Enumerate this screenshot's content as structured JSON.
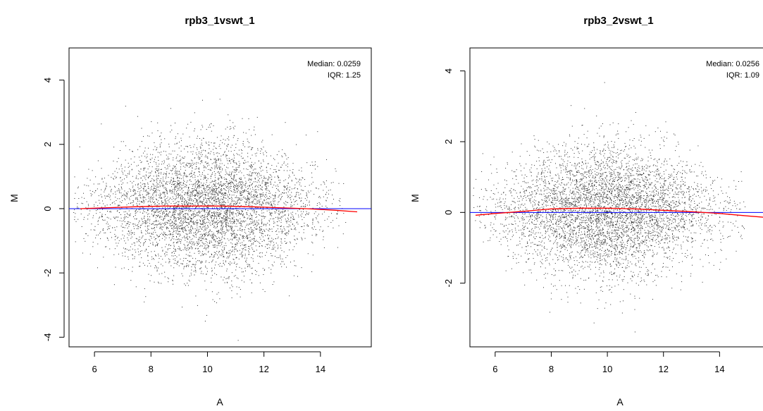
{
  "chart_data": [
    {
      "type": "scatter",
      "title": "rpb3_1vswt_1",
      "xlabel": "A",
      "ylabel": "M",
      "xlim": [
        5.1,
        15.8
      ],
      "ylim": [
        -4.3,
        5.0
      ],
      "x_ticks": [
        "6",
        "8",
        "10",
        "12",
        "14"
      ],
      "y_ticks": [
        "-4",
        "-2",
        "0",
        "2",
        "4"
      ],
      "grid": false,
      "annotations": [
        "Median: 0.0259",
        "IQR: 1.25"
      ],
      "median": 0.0259,
      "iqr": 1.25,
      "series": [
        {
          "kind": "points",
          "color": "#000000",
          "x_range": [
            5.5,
            14.5
          ],
          "y_center": 0.03,
          "x_peak": 10.0,
          "y_spread_sd": 0.85
        },
        {
          "kind": "loess-fit",
          "color": "#ff0000",
          "x": [
            5.5,
            6.5,
            7.5,
            8.5,
            9.5,
            10.5,
            11.5,
            12.5,
            13.5,
            14.5,
            15.3
          ],
          "y": [
            0.0,
            0.03,
            0.06,
            0.08,
            0.08,
            0.08,
            0.06,
            0.03,
            0.0,
            -0.05,
            -0.1
          ]
        },
        {
          "kind": "reference-line",
          "color": "#0000ff",
          "y": 0
        }
      ]
    },
    {
      "type": "scatter",
      "title": "rpb3_2vswt_1",
      "xlabel": "A",
      "ylabel": "M",
      "xlim": [
        5.1,
        15.9
      ],
      "ylim": [
        -3.8,
        4.65
      ],
      "x_ticks": [
        "6",
        "8",
        "10",
        "12",
        "14"
      ],
      "y_ticks": [
        "-2",
        "0",
        "2",
        "4"
      ],
      "grid": false,
      "annotations": [
        "Median: 0.0256",
        "IQR: 1.09"
      ],
      "median": 0.0256,
      "iqr": 1.09,
      "series": [
        {
          "kind": "points",
          "color": "#000000",
          "x_range": [
            5.5,
            14.5
          ],
          "y_center": 0.05,
          "x_peak": 10.0,
          "y_spread_sd": 0.75
        },
        {
          "kind": "loess-fit",
          "color": "#ff0000",
          "x": [
            5.3,
            6.0,
            7.0,
            8.0,
            9.0,
            10.0,
            11.0,
            12.0,
            13.0,
            14.0,
            15.0,
            15.8
          ],
          "y": [
            -0.08,
            -0.03,
            0.03,
            0.1,
            0.12,
            0.12,
            0.1,
            0.06,
            0.02,
            -0.03,
            -0.1,
            -0.15
          ]
        },
        {
          "kind": "reference-line",
          "color": "#0000ff",
          "y": 0
        }
      ]
    }
  ]
}
